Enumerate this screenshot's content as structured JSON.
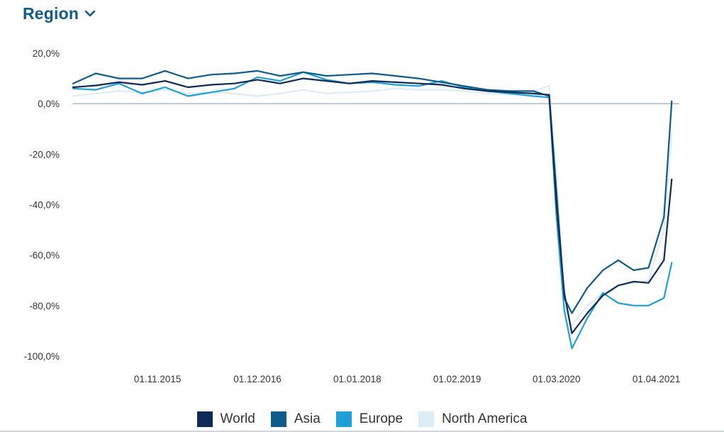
{
  "header": {
    "title": "Region",
    "dropdown_icon": "chevron-down-icon",
    "accent": "#0e5b8c"
  },
  "chart_data": {
    "type": "line",
    "title": "",
    "xlabel": "",
    "ylabel": "",
    "x_tick_labels": [
      "01.11.2015",
      "01.12.2016",
      "01.01.2018",
      "01.02.2019",
      "01.03.2020",
      "01.04.2021"
    ],
    "x_tick_dates": [
      "2015-11-01",
      "2016-12-01",
      "2018-01-01",
      "2019-02-01",
      "2020-03-01",
      "2021-04-01"
    ],
    "y_ticks": [
      20,
      0,
      -20,
      -40,
      -60,
      -80,
      -100
    ],
    "y_tick_labels": [
      "20,0%",
      "0,0%",
      "-20,0%",
      "-40,0%",
      "-60,0%",
      "-80,0%",
      "-100,0%"
    ],
    "ylim": [
      -100,
      20
    ],
    "xlim": [
      "2014-12-01",
      "2021-07-01"
    ],
    "grid": "zero line only",
    "legend_position": "bottom",
    "series": [
      {
        "name": "World",
        "color": "#0f2a56",
        "points": [
          [
            "2014-12-01",
            6.5
          ],
          [
            "2015-03-01",
            7.2
          ],
          [
            "2015-06-01",
            8.5
          ],
          [
            "2015-09-01",
            7.5
          ],
          [
            "2015-12-01",
            9
          ],
          [
            "2016-03-01",
            6.5
          ],
          [
            "2016-06-01",
            7.5
          ],
          [
            "2016-09-01",
            8
          ],
          [
            "2016-12-01",
            9.5
          ],
          [
            "2017-03-01",
            8
          ],
          [
            "2017-06-01",
            10
          ],
          [
            "2017-09-01",
            9
          ],
          [
            "2017-12-01",
            8
          ],
          [
            "2018-03-01",
            9
          ],
          [
            "2018-06-01",
            8.5
          ],
          [
            "2018-09-01",
            8
          ],
          [
            "2018-12-01",
            7.5
          ],
          [
            "2019-03-01",
            6
          ],
          [
            "2019-06-01",
            5
          ],
          [
            "2019-09-01",
            4.5
          ],
          [
            "2019-12-01",
            4
          ],
          [
            "2020-02-01",
            3.5
          ],
          [
            "2020-03-01",
            -40
          ],
          [
            "2020-04-01",
            -75
          ],
          [
            "2020-05-01",
            -91
          ],
          [
            "2020-07-01",
            -83
          ],
          [
            "2020-09-01",
            -76
          ],
          [
            "2020-11-01",
            -72
          ],
          [
            "2021-01-01",
            -70.5
          ],
          [
            "2021-03-01",
            -71
          ],
          [
            "2021-05-01",
            -62
          ],
          [
            "2021-06-01",
            -30
          ]
        ]
      },
      {
        "name": "Asia",
        "color": "#0e5b8c",
        "points": [
          [
            "2014-12-01",
            8
          ],
          [
            "2015-03-01",
            12
          ],
          [
            "2015-06-01",
            10
          ],
          [
            "2015-09-01",
            10
          ],
          [
            "2015-12-01",
            13
          ],
          [
            "2016-03-01",
            10
          ],
          [
            "2016-06-01",
            11.5
          ],
          [
            "2016-09-01",
            12
          ],
          [
            "2016-12-01",
            13
          ],
          [
            "2017-03-01",
            11
          ],
          [
            "2017-06-01",
            12.5
          ],
          [
            "2017-09-01",
            11
          ],
          [
            "2017-12-01",
            11.5
          ],
          [
            "2018-03-01",
            12
          ],
          [
            "2018-06-01",
            11
          ],
          [
            "2018-09-01",
            10
          ],
          [
            "2018-12-01",
            8.5
          ],
          [
            "2019-03-01",
            7
          ],
          [
            "2019-06-01",
            5.5
          ],
          [
            "2019-09-01",
            5
          ],
          [
            "2019-12-01",
            5
          ],
          [
            "2020-02-01",
            3
          ],
          [
            "2020-03-01",
            -35
          ],
          [
            "2020-04-01",
            -77
          ],
          [
            "2020-05-01",
            -83
          ],
          [
            "2020-07-01",
            -73
          ],
          [
            "2020-09-01",
            -66
          ],
          [
            "2020-11-01",
            -62
          ],
          [
            "2021-01-01",
            -66
          ],
          [
            "2021-03-01",
            -65
          ],
          [
            "2021-05-01",
            -45
          ],
          [
            "2021-06-01",
            1
          ]
        ]
      },
      {
        "name": "Europe",
        "color": "#1e9fd6",
        "points": [
          [
            "2014-12-01",
            6
          ],
          [
            "2015-03-01",
            5.5
          ],
          [
            "2015-06-01",
            8
          ],
          [
            "2015-09-01",
            4
          ],
          [
            "2015-12-01",
            6.5
          ],
          [
            "2016-03-01",
            3
          ],
          [
            "2016-06-01",
            4.5
          ],
          [
            "2016-09-01",
            6
          ],
          [
            "2016-12-01",
            10.5
          ],
          [
            "2017-03-01",
            9
          ],
          [
            "2017-06-01",
            12.5
          ],
          [
            "2017-09-01",
            9.5
          ],
          [
            "2017-12-01",
            8
          ],
          [
            "2018-03-01",
            8.5
          ],
          [
            "2018-06-01",
            7.5
          ],
          [
            "2018-09-01",
            7
          ],
          [
            "2018-12-01",
            9
          ],
          [
            "2019-03-01",
            6.5
          ],
          [
            "2019-06-01",
            5
          ],
          [
            "2019-09-01",
            4
          ],
          [
            "2019-12-01",
            3
          ],
          [
            "2020-02-01",
            2.5
          ],
          [
            "2020-03-01",
            -45
          ],
          [
            "2020-04-01",
            -82
          ],
          [
            "2020-05-01",
            -97
          ],
          [
            "2020-07-01",
            -85
          ],
          [
            "2020-09-01",
            -75
          ],
          [
            "2020-11-01",
            -79
          ],
          [
            "2021-01-01",
            -80
          ],
          [
            "2021-03-01",
            -80
          ],
          [
            "2021-05-01",
            -77
          ],
          [
            "2021-06-01",
            -63
          ]
        ]
      },
      {
        "name": "North America",
        "color": "#dcedf5",
        "points": [
          [
            "2014-12-01",
            3
          ],
          [
            "2015-03-01",
            4
          ],
          [
            "2015-06-01",
            5
          ],
          [
            "2015-09-01",
            4.5
          ],
          [
            "2015-12-01",
            5.5
          ],
          [
            "2016-03-01",
            4
          ],
          [
            "2016-06-01",
            4.5
          ],
          [
            "2016-09-01",
            4
          ],
          [
            "2016-12-01",
            3
          ],
          [
            "2017-03-01",
            4
          ],
          [
            "2017-06-01",
            5.5
          ],
          [
            "2017-09-01",
            4
          ],
          [
            "2017-12-01",
            4.5
          ],
          [
            "2018-03-01",
            5
          ],
          [
            "2018-06-01",
            6
          ],
          [
            "2018-09-01",
            5.5
          ],
          [
            "2018-12-01",
            5.5
          ],
          [
            "2019-03-01",
            5
          ],
          [
            "2019-06-01",
            4
          ],
          [
            "2019-09-01",
            3.5
          ],
          [
            "2019-12-01",
            5
          ],
          [
            "2020-02-01",
            7
          ],
          [
            "2020-03-01",
            -30
          ],
          [
            "2020-04-01",
            -80
          ],
          [
            "2020-05-01",
            -88
          ],
          [
            "2020-07-01",
            -80
          ],
          [
            "2020-09-01",
            -75
          ],
          [
            "2020-11-01",
            -72
          ],
          [
            "2021-01-01",
            -71
          ],
          [
            "2021-03-01",
            -70
          ],
          [
            "2021-05-01",
            -50
          ],
          [
            "2021-06-01",
            -12
          ]
        ]
      }
    ]
  },
  "legend": [
    {
      "label": "World",
      "color": "#0f2a56"
    },
    {
      "label": "Asia",
      "color": "#0e5b8c"
    },
    {
      "label": "Europe",
      "color": "#1e9fd6"
    },
    {
      "label": "North America",
      "color": "#dcedf5"
    }
  ]
}
